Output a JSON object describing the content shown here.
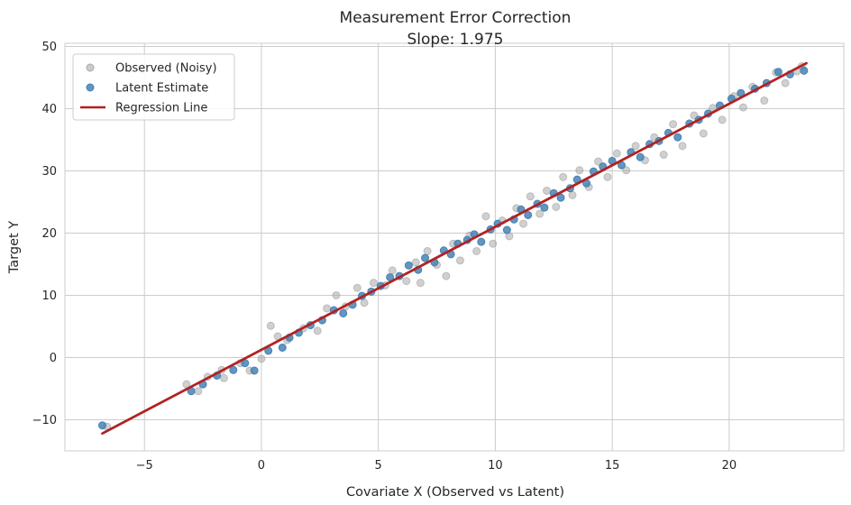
{
  "chart_data": {
    "type": "scatter",
    "title": "Measurement Error Correction",
    "subtitle": "Slope: 1.975",
    "xlabel": "Covariate X (Observed vs Latent)",
    "ylabel": "Target Y",
    "xlim": [
      -8.4,
      24.9
    ],
    "ylim": [
      -15,
      50.5
    ],
    "xticks": [
      -5,
      0,
      5,
      10,
      15,
      20
    ],
    "yticks": [
      -10,
      0,
      10,
      20,
      30,
      40,
      50
    ],
    "xtick_labels": [
      "−5",
      "0",
      "5",
      "10",
      "15",
      "20"
    ],
    "ytick_labels": [
      "−10",
      "0",
      "10",
      "20",
      "30",
      "40",
      "50"
    ],
    "grid": true,
    "legend_position": "top-left",
    "series": [
      {
        "name": "Observed (Noisy)",
        "kind": "scatter",
        "color": "#a9a9a9",
        "points": [
          [
            -6.6,
            -11.1
          ],
          [
            -3.2,
            -4.3
          ],
          [
            -2.7,
            -5.4
          ],
          [
            -2.3,
            -3.1
          ],
          [
            -1.7,
            -2.0
          ],
          [
            -1.6,
            -3.3
          ],
          [
            -0.9,
            -0.9
          ],
          [
            -0.5,
            -2.1
          ],
          [
            0.0,
            -0.2
          ],
          [
            0.4,
            5.1
          ],
          [
            0.7,
            3.4
          ],
          [
            1.1,
            2.8
          ],
          [
            1.8,
            4.7
          ],
          [
            2.4,
            4.3
          ],
          [
            2.8,
            7.9
          ],
          [
            3.2,
            10.0
          ],
          [
            3.6,
            8.2
          ],
          [
            4.1,
            11.2
          ],
          [
            4.4,
            8.8
          ],
          [
            4.8,
            12.0
          ],
          [
            5.3,
            11.6
          ],
          [
            5.6,
            14.0
          ],
          [
            6.2,
            12.3
          ],
          [
            6.6,
            15.3
          ],
          [
            6.8,
            12.0
          ],
          [
            7.1,
            17.1
          ],
          [
            7.5,
            14.9
          ],
          [
            7.9,
            13.1
          ],
          [
            8.2,
            18.3
          ],
          [
            8.5,
            15.6
          ],
          [
            8.9,
            19.6
          ],
          [
            9.2,
            17.1
          ],
          [
            9.6,
            22.7
          ],
          [
            9.9,
            18.3
          ],
          [
            10.3,
            22.0
          ],
          [
            10.6,
            19.5
          ],
          [
            10.9,
            24.0
          ],
          [
            11.2,
            21.5
          ],
          [
            11.5,
            25.9
          ],
          [
            11.9,
            23.1
          ],
          [
            12.2,
            26.8
          ],
          [
            12.6,
            24.2
          ],
          [
            12.9,
            29.0
          ],
          [
            13.3,
            26.1
          ],
          [
            13.6,
            30.1
          ],
          [
            14.0,
            27.4
          ],
          [
            14.4,
            31.5
          ],
          [
            14.8,
            29.0
          ],
          [
            15.2,
            32.8
          ],
          [
            15.6,
            30.1
          ],
          [
            16.0,
            34.0
          ],
          [
            16.4,
            31.7
          ],
          [
            16.8,
            35.4
          ],
          [
            17.2,
            32.6
          ],
          [
            17.6,
            37.5
          ],
          [
            18.0,
            34.0
          ],
          [
            18.5,
            38.9
          ],
          [
            18.9,
            36.0
          ],
          [
            19.3,
            40.1
          ],
          [
            19.7,
            38.2
          ],
          [
            20.2,
            42.0
          ],
          [
            20.6,
            40.2
          ],
          [
            21.0,
            43.5
          ],
          [
            21.5,
            41.3
          ],
          [
            22.0,
            45.8
          ],
          [
            22.4,
            44.1
          ],
          [
            22.9,
            46.0
          ],
          [
            23.1,
            46.8
          ]
        ]
      },
      {
        "name": "Latent Estimate",
        "kind": "scatter",
        "color": "#4682b4",
        "points": [
          [
            -6.8,
            -10.9
          ],
          [
            -3.0,
            -5.4
          ],
          [
            -2.5,
            -4.3
          ],
          [
            -1.9,
            -2.9
          ],
          [
            -1.2,
            -2.0
          ],
          [
            -0.7,
            -0.9
          ],
          [
            -0.3,
            -2.1
          ],
          [
            0.3,
            1.1
          ],
          [
            0.9,
            1.6
          ],
          [
            1.2,
            3.2
          ],
          [
            1.6,
            4.0
          ],
          [
            2.1,
            5.2
          ],
          [
            2.6,
            6.0
          ],
          [
            3.1,
            7.6
          ],
          [
            3.5,
            7.1
          ],
          [
            3.9,
            8.5
          ],
          [
            4.3,
            9.9
          ],
          [
            4.7,
            10.6
          ],
          [
            5.1,
            11.5
          ],
          [
            5.5,
            12.9
          ],
          [
            5.9,
            13.1
          ],
          [
            6.3,
            14.8
          ],
          [
            6.7,
            14.1
          ],
          [
            7.0,
            16.0
          ],
          [
            7.4,
            15.3
          ],
          [
            7.8,
            17.2
          ],
          [
            8.1,
            16.6
          ],
          [
            8.4,
            18.3
          ],
          [
            8.8,
            18.9
          ],
          [
            9.1,
            19.8
          ],
          [
            9.4,
            18.6
          ],
          [
            9.8,
            20.6
          ],
          [
            10.1,
            21.5
          ],
          [
            10.5,
            20.5
          ],
          [
            10.8,
            22.2
          ],
          [
            11.1,
            23.8
          ],
          [
            11.4,
            22.9
          ],
          [
            11.8,
            24.7
          ],
          [
            12.1,
            24.1
          ],
          [
            12.5,
            26.4
          ],
          [
            12.8,
            25.7
          ],
          [
            13.2,
            27.2
          ],
          [
            13.5,
            28.6
          ],
          [
            13.9,
            28.0
          ],
          [
            14.2,
            29.9
          ],
          [
            14.6,
            30.7
          ],
          [
            15.0,
            31.6
          ],
          [
            15.4,
            30.9
          ],
          [
            15.8,
            33.0
          ],
          [
            16.2,
            32.2
          ],
          [
            16.6,
            34.3
          ],
          [
            17.0,
            34.8
          ],
          [
            17.4,
            36.1
          ],
          [
            17.8,
            35.4
          ],
          [
            18.3,
            37.6
          ],
          [
            18.7,
            38.2
          ],
          [
            19.1,
            39.2
          ],
          [
            19.6,
            40.5
          ],
          [
            20.1,
            41.6
          ],
          [
            20.5,
            42.5
          ],
          [
            21.1,
            43.2
          ],
          [
            21.6,
            44.1
          ],
          [
            22.1,
            45.9
          ],
          [
            22.6,
            45.5
          ],
          [
            23.2,
            46.1
          ]
        ]
      },
      {
        "name": "Regression Line",
        "kind": "line",
        "color": "#b22222",
        "x": [
          -6.8,
          23.3
        ],
        "y": [
          -12.2,
          47.3
        ]
      }
    ]
  }
}
